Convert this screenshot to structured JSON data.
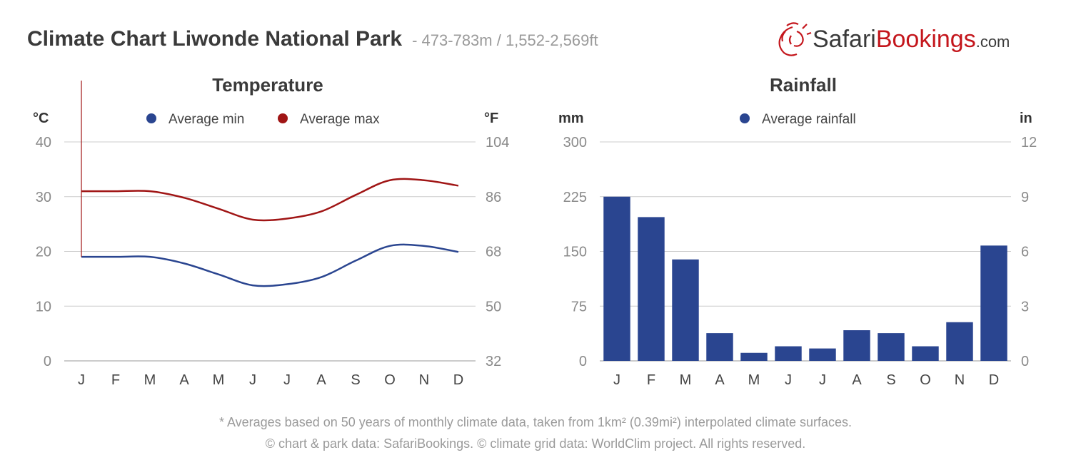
{
  "header": {
    "title": "Climate Chart Liwonde National Park",
    "subtitle": "- 473-783m / 1,552-2,569ft"
  },
  "logo": {
    "text_a": "Safari",
    "text_b": "Bookings",
    "text_c": ".com"
  },
  "colors": {
    "min": "#2a4590",
    "max": "#a01515",
    "bar": "#2a4590",
    "grid": "#cccccc",
    "logo_red": "#c4161c"
  },
  "footer": {
    "line1": "* Averages based on 50 years of monthly climate data, taken from 1km² (0.39mi²) interpolated climate surfaces.",
    "line2": "© chart & park data: SafariBookings. © climate grid data: WorldClim project. All rights reserved."
  },
  "chart_data": [
    {
      "type": "line",
      "title": "Temperature",
      "left_unit": "°C",
      "right_unit": "°F",
      "categories": [
        "J",
        "F",
        "M",
        "A",
        "M",
        "J",
        "J",
        "A",
        "S",
        "O",
        "N",
        "D"
      ],
      "ylim": [
        0,
        40
      ],
      "y_ticks": [
        "0",
        "10",
        "20",
        "30",
        "40"
      ],
      "y2_ticks": [
        "32",
        "50",
        "68",
        "86",
        "104"
      ],
      "legend": [
        "Average min",
        "Average max"
      ],
      "series": [
        {
          "name": "Average min",
          "values": [
            19.0,
            19.0,
            19.0,
            17.8,
            15.8,
            13.8,
            14.0,
            15.3,
            18.3,
            21.0,
            21.0,
            19.9
          ]
        },
        {
          "name": "Average max",
          "values": [
            31.0,
            31.0,
            31.0,
            29.8,
            27.8,
            25.8,
            26.0,
            27.3,
            30.3,
            33.0,
            33.0,
            32.0
          ]
        }
      ],
      "grid": true,
      "legend_position": "top-center"
    },
    {
      "type": "bar",
      "title": "Rainfall",
      "left_unit": "mm",
      "right_unit": "in",
      "categories": [
        "J",
        "F",
        "M",
        "A",
        "M",
        "J",
        "J",
        "A",
        "S",
        "O",
        "N",
        "D"
      ],
      "ylim": [
        0,
        300
      ],
      "y_ticks": [
        "0",
        "75",
        "150",
        "225",
        "300"
      ],
      "y2_ticks": [
        "0",
        "3",
        "6",
        "9",
        "12"
      ],
      "legend": [
        "Average rainfall"
      ],
      "series": [
        {
          "name": "Average rainfall",
          "values": [
            225,
            197,
            139,
            38,
            11,
            20,
            17,
            42,
            38,
            20,
            53,
            158
          ]
        }
      ],
      "grid": true,
      "legend_position": "top-center"
    }
  ]
}
